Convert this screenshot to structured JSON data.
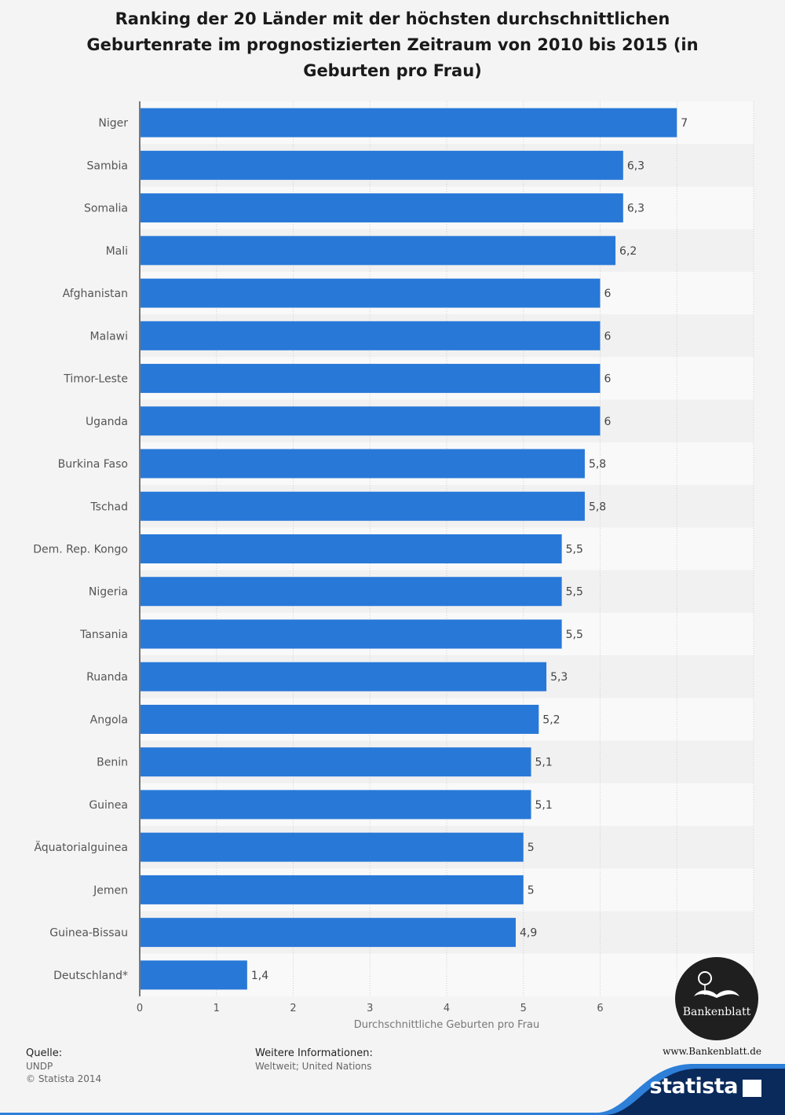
{
  "title": "Ranking der 20 Länder mit der höchsten durchschnittlichen Geburtenrate im prognostizierten Zeitraum von 2010 bis 2015 (in Geburten pro Frau)",
  "chart_data": {
    "type": "bar",
    "orientation": "horizontal",
    "categories": [
      "Niger",
      "Sambia",
      "Somalia",
      "Mali",
      "Afghanistan",
      "Malawi",
      "Timor-Leste",
      "Uganda",
      "Burkina Faso",
      "Tschad",
      "Dem. Rep. Kongo",
      "Nigeria",
      "Tansania",
      "Ruanda",
      "Angola",
      "Benin",
      "Guinea",
      "Äquatorialguinea",
      "Jemen",
      "Guinea-Bissau",
      "Deutschland*"
    ],
    "values": [
      7,
      6.3,
      6.3,
      6.2,
      6,
      6,
      6,
      6,
      5.8,
      5.8,
      5.5,
      5.5,
      5.5,
      5.3,
      5.2,
      5.1,
      5.1,
      5,
      5,
      4.9,
      1.4
    ],
    "value_labels": [
      "7",
      "6,3",
      "6,3",
      "6,2",
      "6",
      "6",
      "6",
      "6",
      "5,8",
      "5,8",
      "5,5",
      "5,5",
      "5,5",
      "5,3",
      "5,2",
      "5,1",
      "5,1",
      "5",
      "5",
      "4,9",
      "1,4"
    ],
    "xticks": [
      0,
      1,
      2,
      3,
      4,
      5,
      6
    ],
    "xlim": [
      0,
      8
    ],
    "xlabel": "Durchschnittliche Geburten pro Frau",
    "ylabel": "",
    "grid": true,
    "bar_color": "#2878d8"
  },
  "footer": {
    "source_heading": "Quelle:",
    "source_lines": [
      "UNDP",
      "© Statista 2014"
    ],
    "info_heading": "Weitere Informationen:",
    "info_text": "Weltweit; United Nations"
  },
  "watermark": {
    "url": "www.Bankenblatt.de",
    "badge_text": "Bankenblatt"
  },
  "brand": {
    "name": "statista",
    "color": "#0a2a5c",
    "accent": "#2d7fd8"
  }
}
